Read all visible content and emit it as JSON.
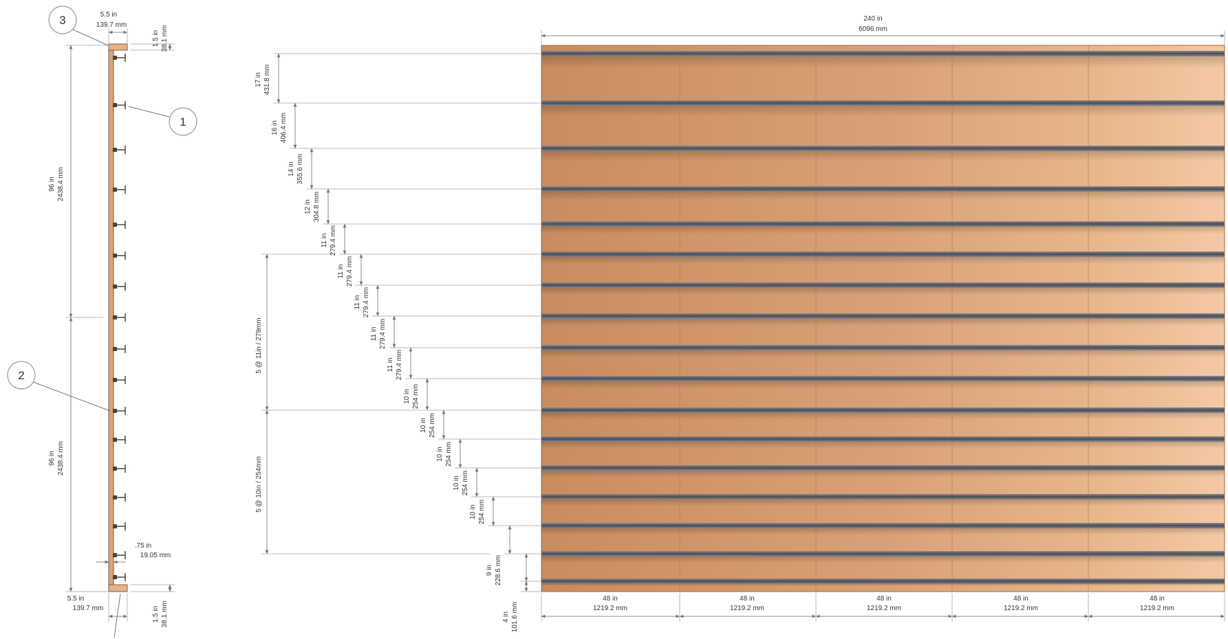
{
  "callouts": [
    "1",
    "2",
    "3"
  ],
  "section": {
    "top_cap_width": [
      "5.5 in",
      "139.7 mm"
    ],
    "top_cap_thickness": [
      "1.5 in",
      "38.1 mm"
    ],
    "upper_height": [
      "96 in",
      "2438.4 mm"
    ],
    "lower_height": [
      "96 in",
      "2438.4 mm"
    ],
    "panel_thickness": [
      ".75 in",
      "19.05 mm"
    ],
    "bottom_cap_width": [
      "5.5 in",
      "139.7 mm"
    ],
    "bottom_cap_thickness": [
      "1.5 in",
      "38.1 mm"
    ]
  },
  "overall_width": [
    "240 in",
    "6096 mm"
  ],
  "panel_widths": [
    [
      "48 in",
      "1219.2 mm"
    ],
    [
      "48 in",
      "1219.2 mm"
    ],
    [
      "48 in",
      "1219.2 mm"
    ],
    [
      "48 in",
      "1219.2 mm"
    ],
    [
      "48 in",
      "1219.2 mm"
    ]
  ],
  "spacing_groups": [
    [
      "5 @ 11in / 279mm"
    ],
    [
      "5 @ 10in / 254mm"
    ]
  ],
  "spacings": [
    [
      "17 in",
      "431.8 mm"
    ],
    [
      "16 in",
      "406.4 mm"
    ],
    [
      "14 in",
      "355.6 mm"
    ],
    [
      "12 in",
      "304.8 mm"
    ],
    [
      "11 in",
      "279.4 mm"
    ],
    [
      "11 in",
      "279.4 mm"
    ],
    [
      "11 in",
      "279.4 mm"
    ],
    [
      "11 in",
      "279.4 mm"
    ],
    [
      "11 in",
      "279.4 mm"
    ],
    [
      "10 in",
      "254 mm"
    ],
    [
      "10 in",
      "254 mm"
    ],
    [
      "10 in",
      "254 mm"
    ],
    [
      "10 in",
      "254 mm"
    ],
    [
      "10 in",
      "254 mm"
    ],
    [
      "9 in",
      "228.6 mm"
    ],
    [
      "4 in",
      "101.6 mm"
    ]
  ],
  "colors": {
    "wood_dark": "#c98c5f",
    "wood_light": "#f1c59e",
    "rail": "#5c5c62",
    "line": "#888888",
    "text": "#333333"
  }
}
